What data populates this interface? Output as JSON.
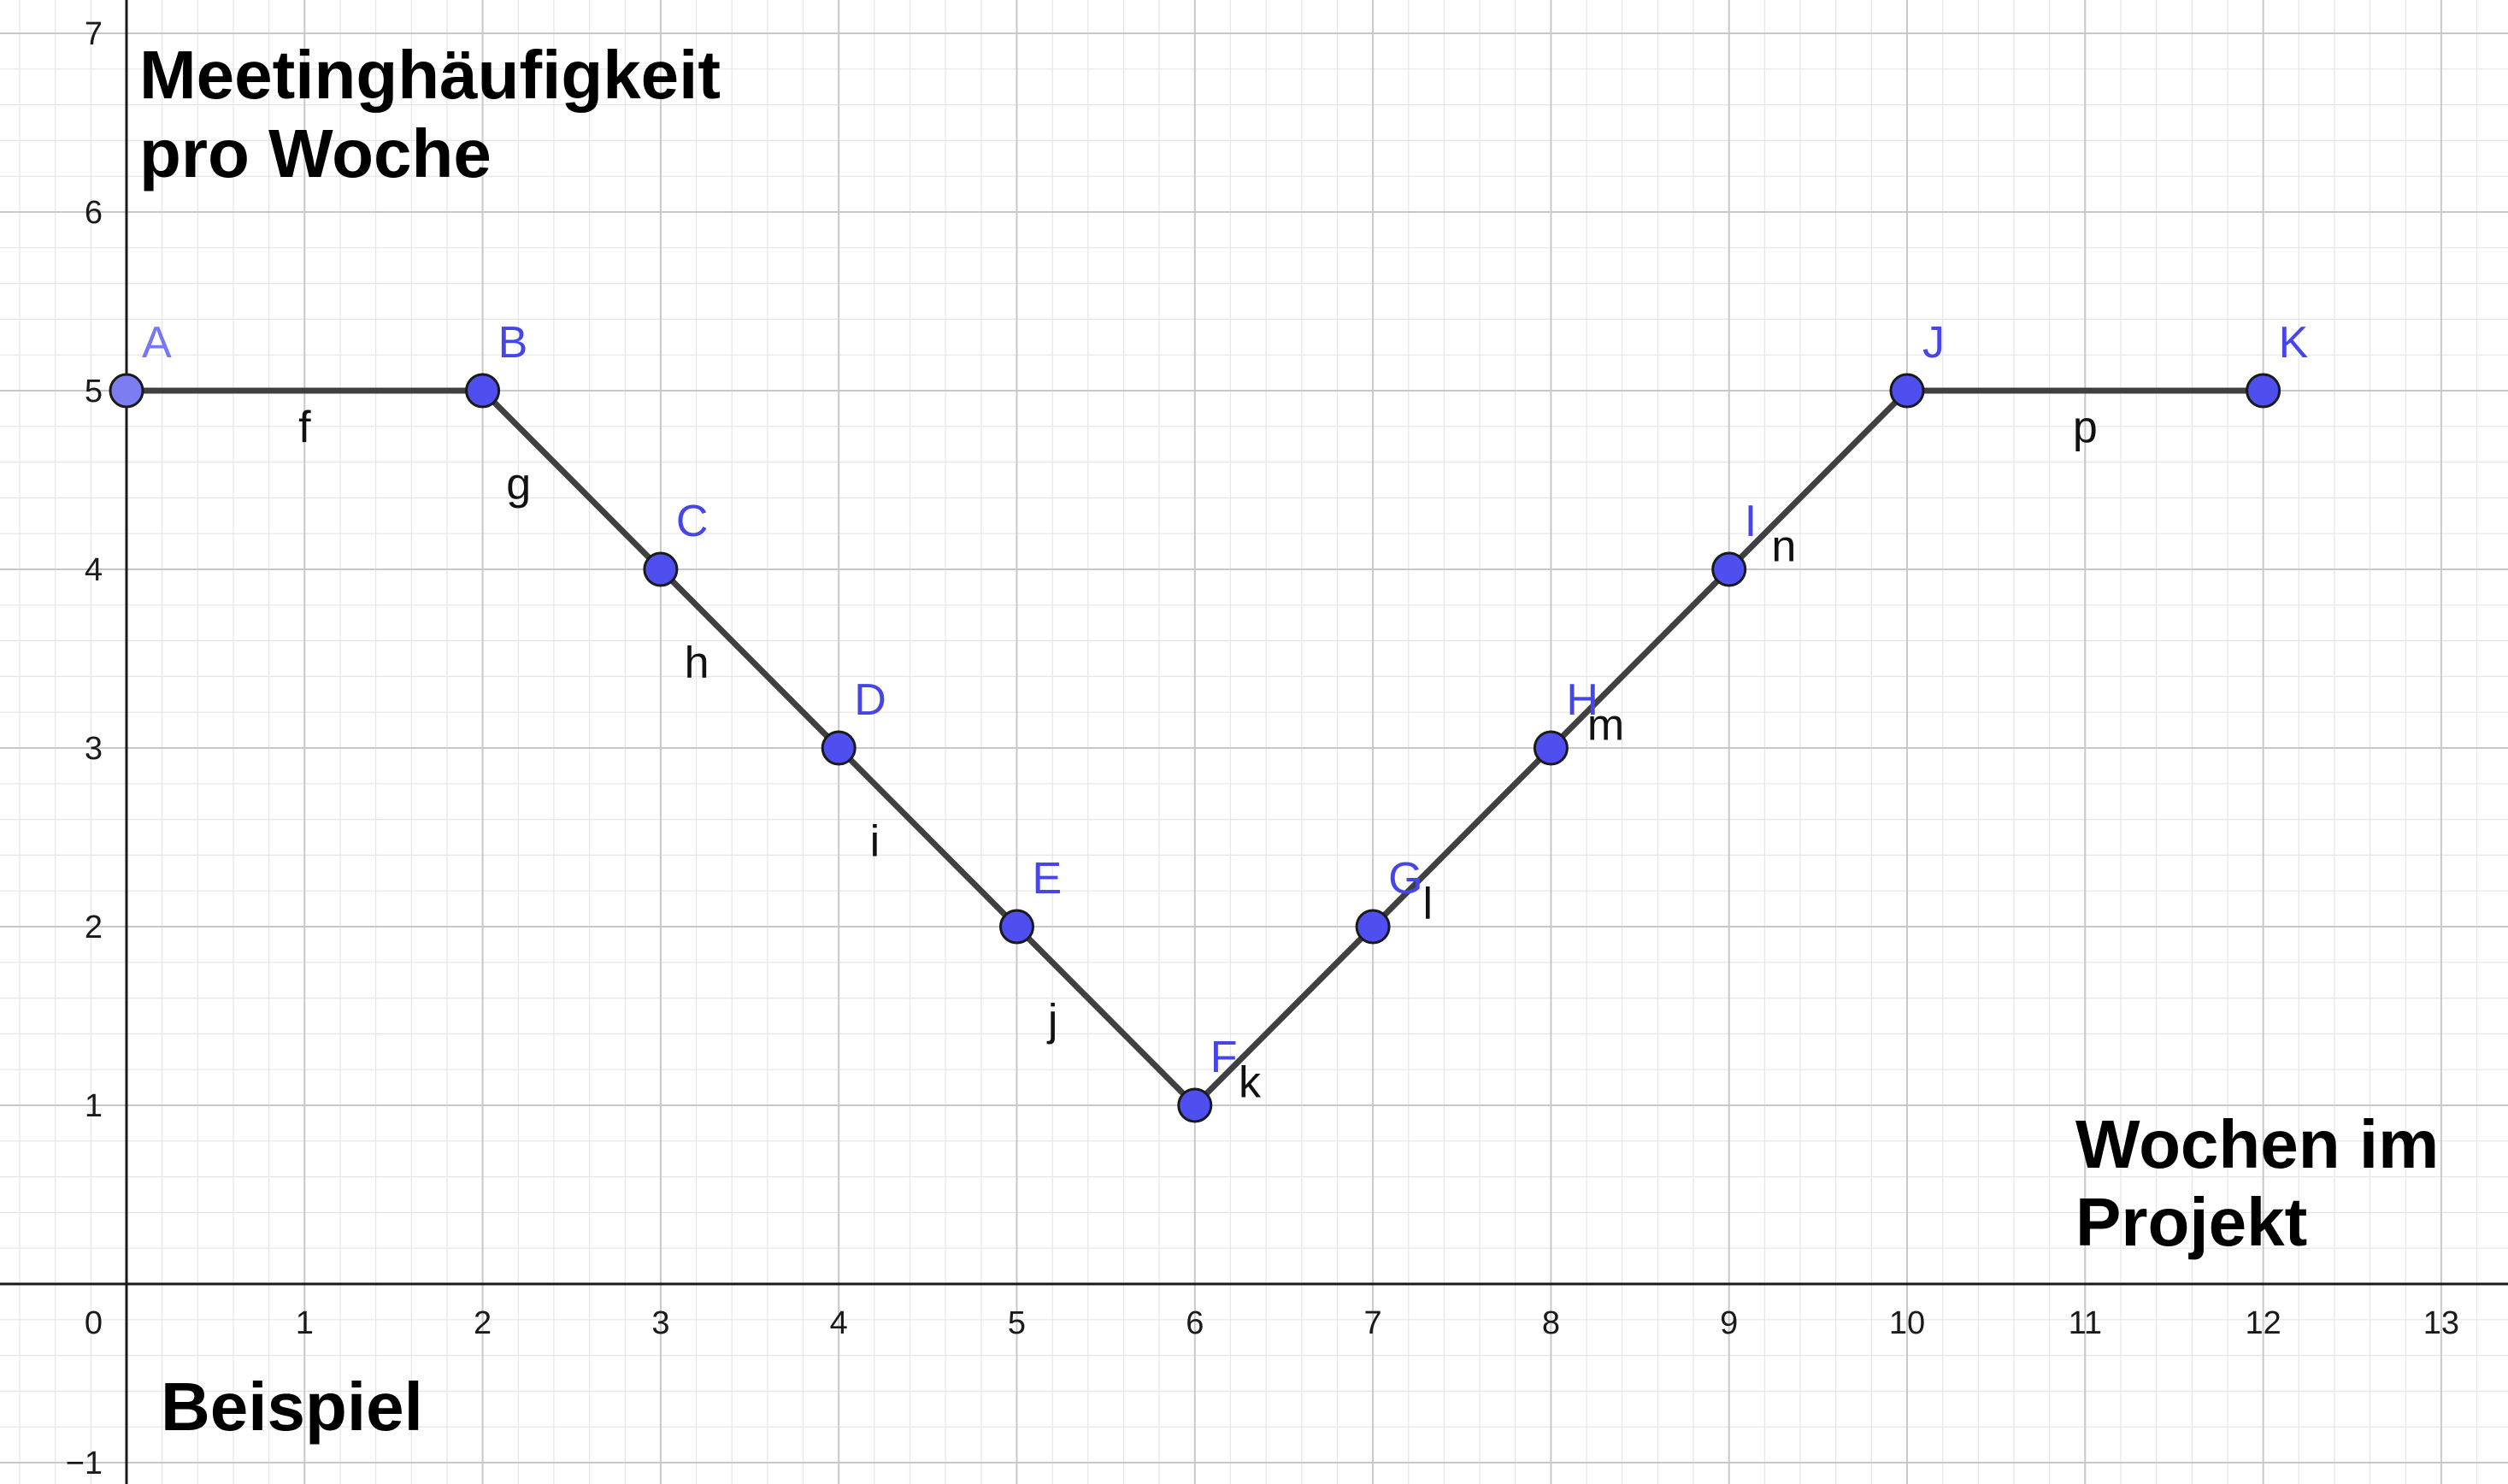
{
  "chart_data": {
    "type": "line",
    "x_range": [
      0,
      13
    ],
    "y_range": [
      -1,
      7
    ],
    "grid": true,
    "x_ticks": [
      "0",
      "1",
      "2",
      "3",
      "4",
      "5",
      "6",
      "7",
      "8",
      "9",
      "10",
      "11",
      "12",
      "13"
    ],
    "y_ticks": [
      "−1",
      "1",
      "2",
      "3",
      "4",
      "5",
      "6",
      "7"
    ],
    "points": [
      {
        "name": "A",
        "x": 0,
        "y": 5
      },
      {
        "name": "B",
        "x": 2,
        "y": 5
      },
      {
        "name": "C",
        "x": 3,
        "y": 4
      },
      {
        "name": "D",
        "x": 4,
        "y": 3
      },
      {
        "name": "E",
        "x": 5,
        "y": 2
      },
      {
        "name": "F",
        "x": 6,
        "y": 1
      },
      {
        "name": "G",
        "x": 7,
        "y": 2
      },
      {
        "name": "H",
        "x": 8,
        "y": 3
      },
      {
        "name": "I",
        "x": 9,
        "y": 4
      },
      {
        "name": "J",
        "x": 10,
        "y": 5
      },
      {
        "name": "K",
        "x": 12,
        "y": 5
      }
    ],
    "segments": [
      {
        "name": "f",
        "from": "A",
        "to": "B"
      },
      {
        "name": "g",
        "from": "B",
        "to": "C"
      },
      {
        "name": "h",
        "from": "C",
        "to": "D"
      },
      {
        "name": "i",
        "from": "D",
        "to": "E"
      },
      {
        "name": "j",
        "from": "E",
        "to": "F"
      },
      {
        "name": "k",
        "from": "F",
        "to": "G"
      },
      {
        "name": "l",
        "from": "G",
        "to": "H"
      },
      {
        "name": "m",
        "from": "H",
        "to": "I"
      },
      {
        "name": "n",
        "from": "I",
        "to": "J"
      },
      {
        "name": "p",
        "from": "J",
        "to": "K"
      }
    ],
    "y_title_lines": [
      "Meetinghäufigkeit",
      "pro Woche"
    ],
    "x_title_lines": [
      "Wochen im",
      "Projekt"
    ],
    "annotation": "Beispiel"
  },
  "colors": {
    "point_fill": "#4f4ff0",
    "point_fill_first": "#7d7df2",
    "point_label": "#4646e8",
    "point_label_first": "#7878ee",
    "line": "#404040"
  }
}
